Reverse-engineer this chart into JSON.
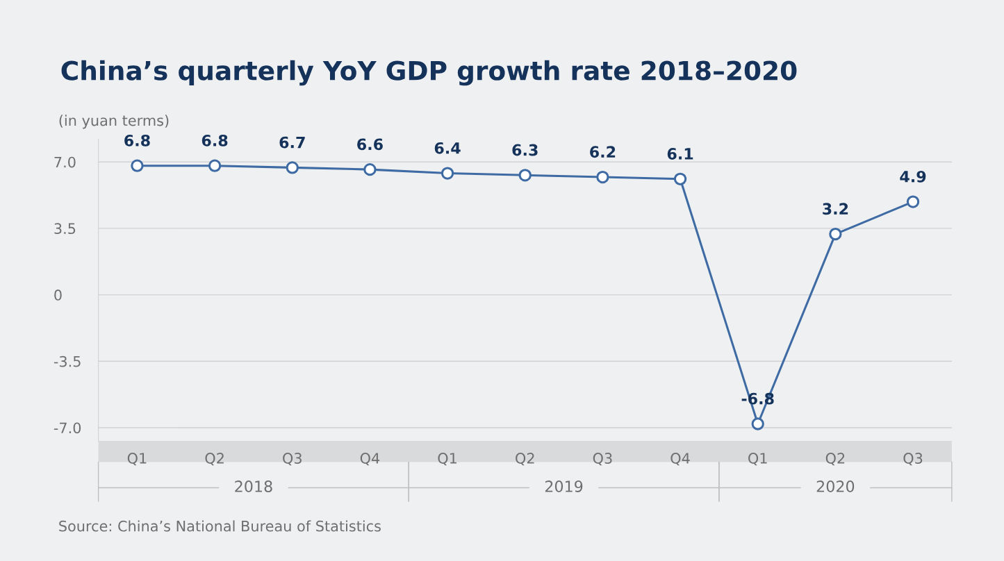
{
  "chart_data": {
    "type": "line",
    "title": "China’s quarterly YoY GDP growth rate 2018–2020",
    "subtitle": "(in yuan terms)",
    "categories": [
      "Q1",
      "Q2",
      "Q3",
      "Q4",
      "Q1",
      "Q2",
      "Q3",
      "Q4",
      "Q1",
      "Q2",
      "Q3"
    ],
    "series": [
      {
        "color": "#3f6ba4",
        "values": [
          6.8,
          6.8,
          6.7,
          6.6,
          6.4,
          6.3,
          6.2,
          6.1,
          -6.8,
          3.2,
          4.9
        ]
      }
    ],
    "ylim": [
      -7.7,
      8.2
    ],
    "yticks": [
      {
        "value": 7,
        "label": "7.0"
      },
      3.5,
      0,
      -3.5,
      {
        "value": -7,
        "label": "-7.0"
      }
    ],
    "grid": "y",
    "marker": "circle",
    "line_style": "solid",
    "data_labels": true,
    "annotations": [
      "2018",
      "2019",
      "2020",
      "Source: China’s National Bureau of Statistics"
    ]
  }
}
